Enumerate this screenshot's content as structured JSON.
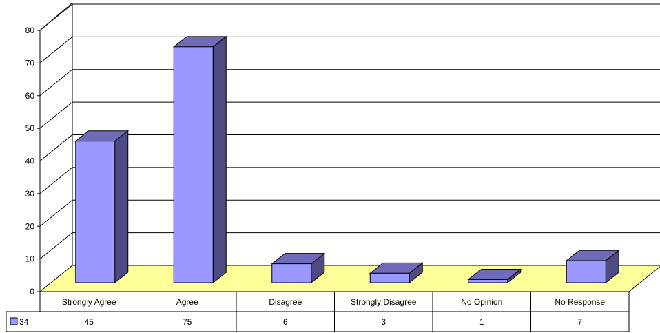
{
  "chart_data": {
    "type": "bar",
    "categories": [
      "Strongly Agree",
      "Agree",
      "Disagree",
      "Strongly Disagree",
      "No Opinion",
      "No Response"
    ],
    "series": [
      {
        "name": "34",
        "values": [
          45,
          75,
          6,
          3,
          1,
          7
        ]
      }
    ],
    "yticks": [
      "0",
      "10",
      "20",
      "30",
      "40",
      "50",
      "60",
      "70",
      "80"
    ],
    "ylim": [
      0,
      80
    ],
    "grid": true,
    "legend": "data-table-left",
    "colors": {
      "bar_front": "#9999ff",
      "bar_side": "#4e4a82",
      "bar_top": "#6f6bb8",
      "floor": "#ffff99",
      "gridline": "#000000"
    }
  }
}
